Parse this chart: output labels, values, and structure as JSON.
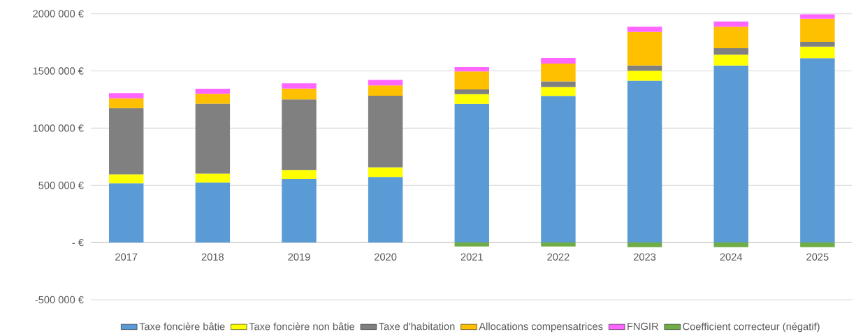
{
  "chart_data": {
    "type": "bar",
    "stacked": true,
    "grid": "y",
    "legend": "bottom",
    "categories": [
      "2017",
      "2018",
      "2019",
      "2020",
      "2021",
      "2022",
      "2023",
      "2024",
      "2025"
    ],
    "ylim": [
      -500000,
      2000000
    ],
    "yticks": [
      {
        "value": -500000,
        "label": "-500 000 €"
      },
      {
        "value": 0,
        "label": "-  €"
      },
      {
        "value": 500000,
        "label": "500 000 €"
      },
      {
        "value": 1000000,
        "label": "1000 000 €"
      },
      {
        "value": 1500000,
        "label": "1500 000 €"
      },
      {
        "value": 2000000,
        "label": "2000 000 €"
      }
    ],
    "series": [
      {
        "name": "Taxe foncière bâtie",
        "color": "#5b9bd5",
        "values": [
          518000,
          524000,
          557000,
          573000,
          1212000,
          1282000,
          1415000,
          1548000,
          1611000
        ]
      },
      {
        "name": "Taxe foncière non bâtie",
        "color": "#ffff00",
        "values": [
          78000,
          79000,
          77000,
          85000,
          85000,
          78000,
          87000,
          94000,
          101000
        ]
      },
      {
        "name": "Taxe d'habitation",
        "color": "#808080",
        "values": [
          579000,
          610000,
          618000,
          626000,
          41000,
          48000,
          46000,
          56000,
          41000
        ]
      },
      {
        "name": "Allocations compensatrices",
        "color": "#ffc000",
        "values": [
          85000,
          87000,
          94000,
          89000,
          157000,
          157000,
          292000,
          188000,
          203000
        ]
      },
      {
        "name": "FNGIR",
        "color": "#ff66ff",
        "values": [
          46000,
          45000,
          46000,
          49000,
          39000,
          48000,
          46000,
          46000,
          39000
        ]
      },
      {
        "name": "Coefficient correcteur (négatif)",
        "color": "#70ad47",
        "values": [
          null,
          null,
          null,
          null,
          -34000,
          -34000,
          -41000,
          -41000,
          -41000
        ]
      }
    ]
  }
}
